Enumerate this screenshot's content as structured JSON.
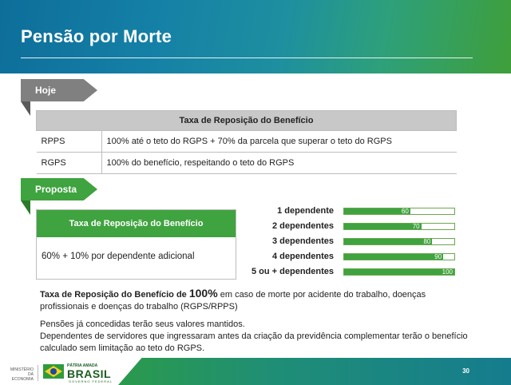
{
  "header": {
    "title": "Pensão por Morte"
  },
  "hoje": {
    "tag": "Hoje",
    "table_header": "Taxa de Reposição do Benefício",
    "rows": [
      {
        "key": "RPPS",
        "value": "100% até o teto do RGPS + 70% da parcela que superar o teto do RGPS"
      },
      {
        "key": "RGPS",
        "value": "100% do benefício, respeitando o teto do RGPS"
      }
    ]
  },
  "proposta": {
    "tag": "Proposta",
    "box_header": "Taxa de Reposição do Benefício",
    "box_text": "60% + 10% por dependente adicional"
  },
  "bars": [
    {
      "label": "1 dependente",
      "value": 60
    },
    {
      "label": "2 dependentes",
      "value": 70
    },
    {
      "label": "3 dependentes",
      "value": 80
    },
    {
      "label": "4 dependentes",
      "value": 90
    },
    {
      "label": "5 ou + dependentes",
      "value": 100
    }
  ],
  "text": {
    "p1_bold": "Taxa de Reposição do Benefício de ",
    "p1_big": "100%",
    "p1_rest": " em caso de morte por acidente do trabalho, doenças profissionais e doenças do trabalho (RGPS/RPPS)",
    "p2": "Pensões já concedidas terão seus valores mantidos.",
    "p3": "Dependentes de servidores que ingressaram antes da criação da previdência complementar terão o benefício calculado sem limitação ao teto do RGPS."
  },
  "footer": {
    "ministry": "MINISTÉRIO DA ECONOMIA",
    "patria": "PÁTRIA AMADA",
    "brasil": "BRASIL",
    "gov": "GOVERNO FEDERAL",
    "page_number": "30"
  },
  "colors": {
    "green": "#3fa33f",
    "gray": "#808080",
    "header_blue": "#0d6e9a"
  }
}
